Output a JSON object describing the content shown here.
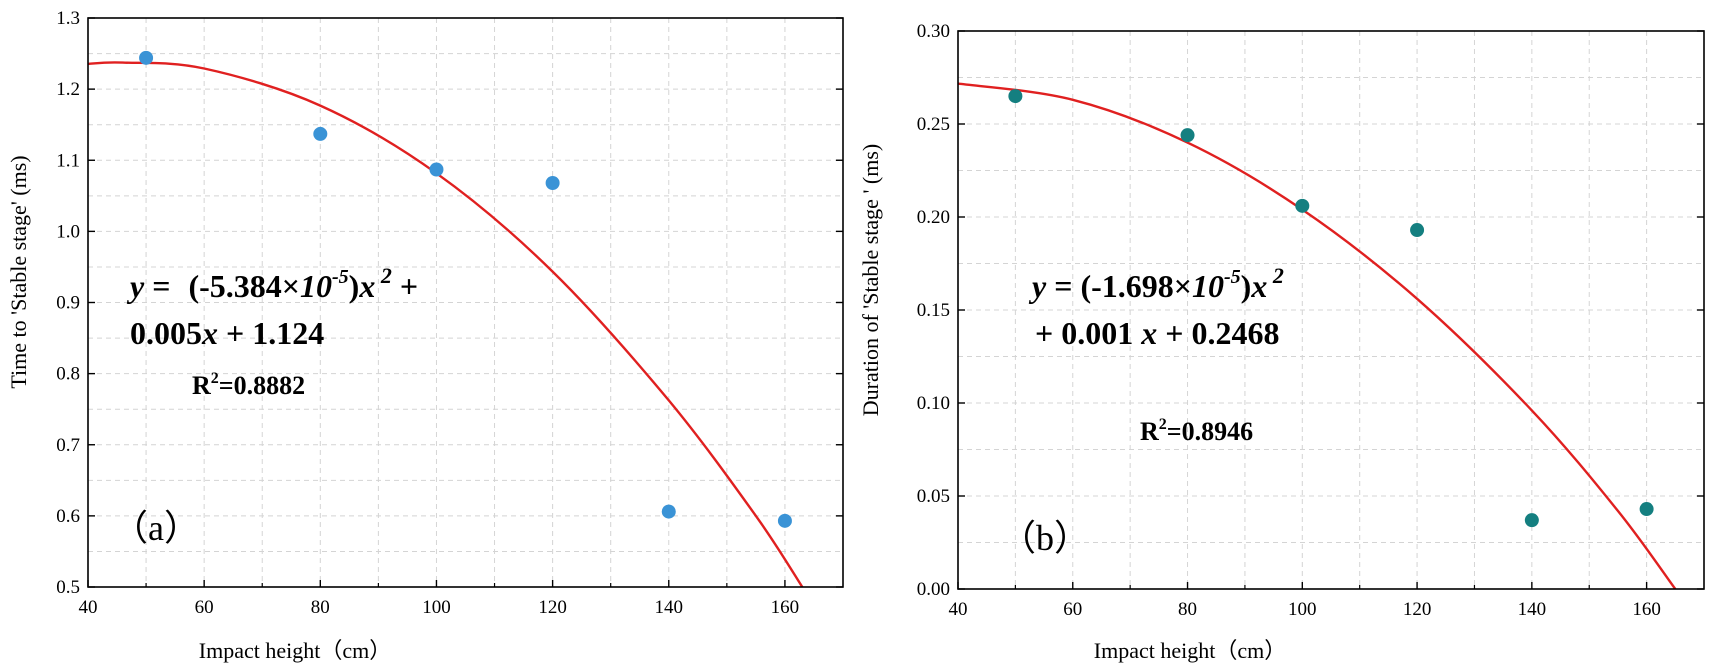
{
  "chart_data": [
    {
      "type": "scatter",
      "panel_label": "（a）",
      "xlabel": "Impact height（cm）",
      "ylabel": "Time to 'Stable stage' (ms)",
      "xlim": [
        40,
        170
      ],
      "ylim": [
        0.5,
        1.3
      ],
      "xticks": [
        40,
        60,
        80,
        100,
        120,
        140,
        160
      ],
      "yticks": [
        0.5,
        0.6,
        0.7,
        0.8,
        0.9,
        1.0,
        1.1,
        1.2,
        1.3
      ],
      "ytick_labels": [
        "0.5",
        "0.6",
        "0.7",
        "0.8",
        "0.9",
        "1.0",
        "1.1",
        "1.2",
        "1.3"
      ],
      "grid": true,
      "series": [
        {
          "name": "data",
          "color": "#3a93d6",
          "x": [
            50,
            80,
            100,
            120,
            140,
            160
          ],
          "y": [
            1.244,
            1.137,
            1.087,
            1.068,
            0.606,
            0.593
          ]
        }
      ],
      "fit": {
        "color": "#e02020",
        "curve_points": [
          [
            40,
            1.2355
          ],
          [
            46,
            1.2373
          ],
          [
            60,
            1.229
          ],
          [
            80,
            1.1769
          ],
          [
            100,
            1.0817
          ],
          [
            120,
            0.9435
          ],
          [
            140,
            0.7623
          ],
          [
            155,
            0.6
          ],
          [
            163,
            0.5
          ]
        ],
        "equation_line1": {
          "y": "y",
          "eq": " = ",
          "coef": "(-5.384×",
          "ten": "10",
          "exp": "-5",
          "close": ")",
          "x": "x",
          "pow": " 2",
          "plus": " +"
        },
        "equation_line2": {
          "lin": "0.005",
          "x": "x",
          "rest": " + 1.124"
        },
        "r2_label": "R",
        "r2_sup": "2",
        "r2_value": "=0.8882"
      }
    },
    {
      "type": "scatter",
      "panel_label": "（b）",
      "xlabel": "Impact height（cm）",
      "ylabel": "Duration of 'Stable stage ' (ms)",
      "xlim": [
        40,
        170
      ],
      "ylim": [
        0.0,
        0.3
      ],
      "xticks": [
        40,
        60,
        80,
        100,
        120,
        140,
        160
      ],
      "yticks": [
        0.0,
        0.05,
        0.1,
        0.15,
        0.2,
        0.25,
        0.3
      ],
      "ytick_labels": [
        "0.00",
        "0.05",
        "0.10",
        "0.15",
        "0.20",
        "0.25",
        "0.30"
      ],
      "grid": true,
      "series": [
        {
          "name": "data",
          "color": "#147f80",
          "x": [
            50,
            80,
            100,
            120,
            140,
            160
          ],
          "y": [
            0.265,
            0.244,
            0.206,
            0.193,
            0.037,
            0.043
          ]
        }
      ],
      "fit": {
        "color": "#e02020",
        "curve_points": [
          [
            40,
            0.2717
          ],
          [
            60,
            0.263
          ],
          [
            80,
            0.24
          ],
          [
            100,
            0.204
          ],
          [
            120,
            0.156
          ],
          [
            140,
            0.096
          ],
          [
            155,
            0.042
          ],
          [
            165,
            0.0
          ]
        ],
        "equation_line1": {
          "y": "y",
          "eq": " = ",
          "coef": "(-1.698×",
          "ten": "10",
          "exp": "-5",
          "close": ")",
          "x": "x",
          "pow": " 2",
          "plus": ""
        },
        "equation_line2": {
          "lin": "+ 0.001 ",
          "x": "x",
          "rest": " + 0.2468"
        },
        "r2_label": "R",
        "r2_sup": "2",
        "r2_value": "=0.8946"
      }
    }
  ]
}
